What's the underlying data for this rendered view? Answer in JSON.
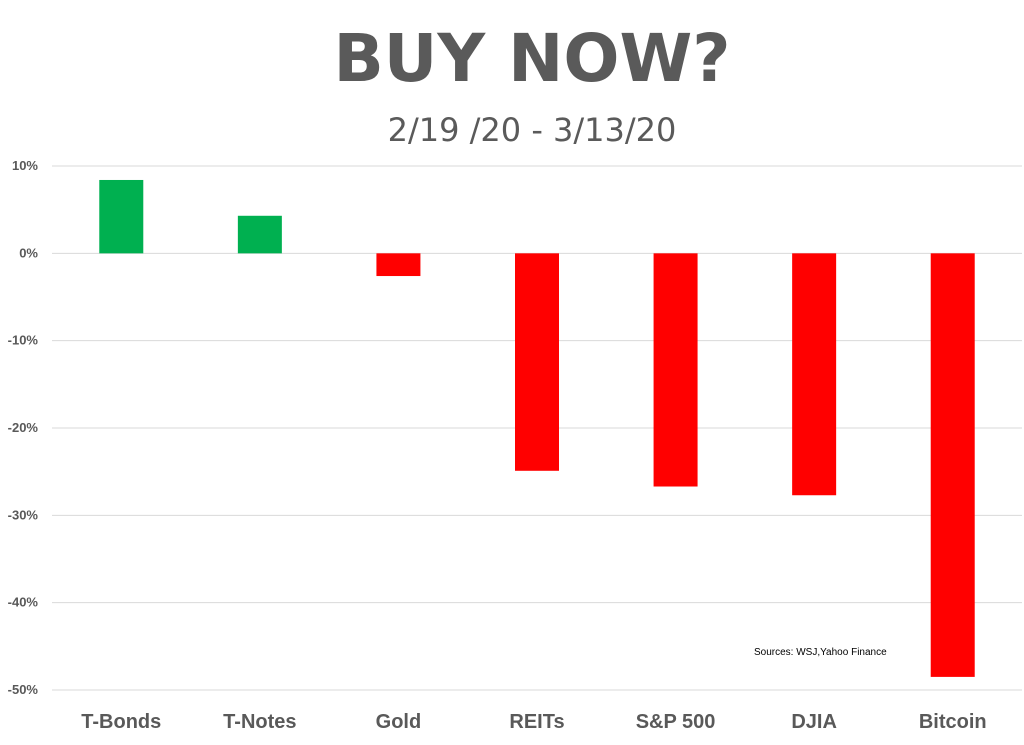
{
  "chart_data": {
    "type": "bar",
    "title": "BUY NOW?",
    "subtitle": "2/19 /20 - 3/13/20",
    "xlabel": "",
    "ylabel": "",
    "categories": [
      "T-Bonds",
      "T-Notes",
      "Gold",
      "REITs",
      "S&P 500",
      "DJIA",
      "Bitcoin"
    ],
    "values": [
      8.4,
      4.3,
      -2.6,
      -24.9,
      -26.7,
      -27.7,
      -48.5
    ],
    "ylim": [
      -50,
      10
    ],
    "yticks": [
      10,
      0,
      -10,
      -20,
      -30,
      -40,
      -50
    ],
    "ytick_labels": [
      "10%",
      "0%",
      "-10%",
      "-20%",
      "-30%",
      "-40%",
      "-50%"
    ],
    "grid": true,
    "legend": "none",
    "colors": {
      "positive": "#00b050",
      "negative": "#ff0000",
      "grid": "#d9d9d9",
      "text": "#595959"
    },
    "annotation": "Sources: WSJ,Yahoo Finance"
  }
}
